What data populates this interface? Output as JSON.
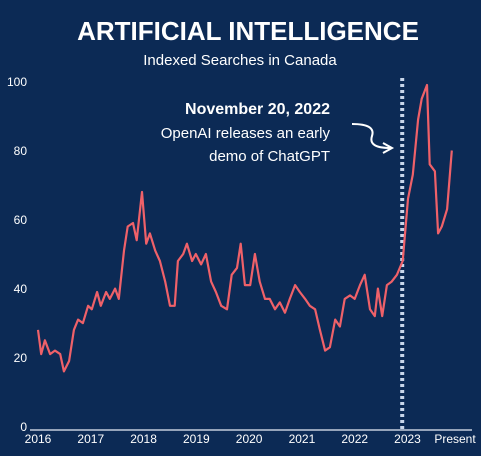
{
  "chart_data": {
    "type": "line",
    "title": "ARTIFICIAL INTELLIGENCE",
    "subtitle": "Indexed Searches in Canada",
    "color": "#ef6169",
    "x": [
      2016.0,
      2016.06,
      2016.13,
      2016.23,
      2016.32,
      2016.42,
      2016.49,
      2016.59,
      2016.68,
      2016.76,
      2016.85,
      2016.95,
      2017.02,
      2017.12,
      2017.19,
      2017.29,
      2017.36,
      2017.46,
      2017.53,
      2017.63,
      2017.7,
      2017.8,
      2017.87,
      2017.97,
      2018.05,
      2018.12,
      2018.22,
      2018.31,
      2018.41,
      2018.5,
      2018.59,
      2018.65,
      2018.75,
      2018.82,
      2018.92,
      2018.99,
      2019.09,
      2019.18,
      2019.28,
      2019.37,
      2019.47,
      2019.58,
      2019.67,
      2019.77,
      2019.84,
      2019.92,
      2020.02,
      2020.11,
      2020.2,
      2020.3,
      2020.39,
      2020.49,
      2020.58,
      2020.68,
      2020.77,
      2020.87,
      2020.96,
      2021.06,
      2021.15,
      2021.25,
      2021.34,
      2021.44,
      2021.53,
      2021.63,
      2021.72,
      2021.81,
      2021.91,
      2022.0,
      2022.1,
      2022.19,
      2022.29,
      2022.38,
      2022.44,
      2022.52,
      2022.61,
      2022.7,
      2022.8,
      2022.91,
      2023.01,
      2023.1,
      2023.2,
      2023.27,
      2023.37,
      2023.42,
      2023.52,
      2023.58,
      2023.65,
      2023.75,
      2023.84
    ],
    "values": [
      29,
      22,
      26,
      22,
      23,
      22,
      17,
      20,
      29,
      32,
      31,
      36,
      35,
      40,
      36,
      40,
      38,
      41,
      38,
      52,
      59,
      60,
      55,
      69,
      54,
      57,
      52,
      49,
      43,
      36,
      36,
      49,
      51,
      54,
      49,
      51,
      48,
      51,
      43,
      40,
      36,
      35,
      45,
      47,
      54,
      42,
      42,
      51,
      43,
      38,
      38,
      35,
      37,
      34,
      38,
      42,
      40,
      38,
      36,
      35,
      29,
      23,
      24,
      32,
      30,
      38,
      39,
      38,
      42,
      45,
      35,
      33,
      41,
      33,
      42,
      43,
      45,
      49,
      67,
      74,
      90,
      96,
      100,
      77,
      75,
      57,
      59,
      64,
      81
    ],
    "xlim": [
      2016,
      2023.9
    ],
    "xticks": [
      2016,
      2017,
      2018,
      2019,
      2020,
      2021,
      2022,
      2023,
      {
        "value": 2023.9,
        "label": "Present"
      }
    ],
    "ylim": [
      0,
      100
    ],
    "yticks": [
      0,
      20,
      40,
      60,
      80,
      100
    ],
    "annotation": {
      "title": "November 20, 2022",
      "text": [
        "OpenAI releases an early",
        "demo of ChatGPT"
      ],
      "x": 2022.9
    }
  }
}
